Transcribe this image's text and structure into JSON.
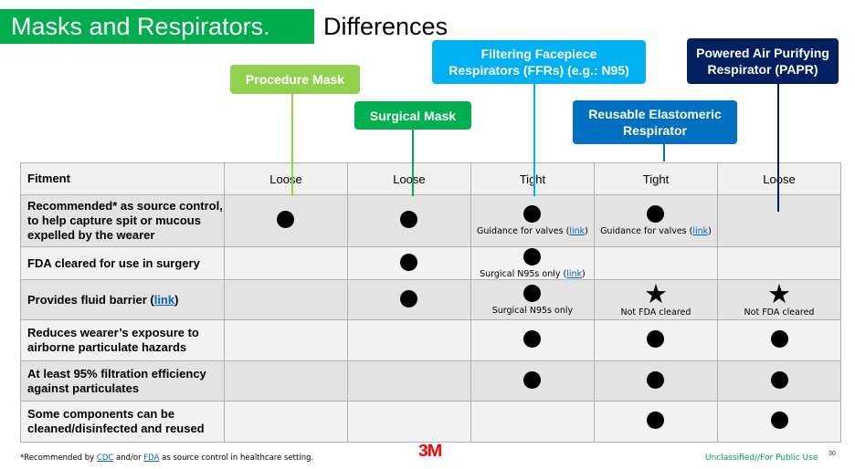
{
  "header": {
    "title": "Masks and Respirators.",
    "subtitle": "Differences"
  },
  "colors": {
    "title_green": "#00ac4b",
    "procedure": "#92d050",
    "surgical": "#00b050",
    "ffr": "#00b0f0",
    "reusable": "#0070c0",
    "papr": "#002060",
    "link": "#0563c1",
    "classification": "#00a050",
    "logo": "#ff0000"
  },
  "callouts": {
    "procedure": "Procedure Mask",
    "surgical": "Surgical Mask",
    "ffr": "Filtering Facepiece Respirators (FFRs) (e.g.: N95)",
    "reusable": "Reusable Elastomeric Respirator",
    "papr": "Powered Air Purifying Respirator (PAPR)"
  },
  "table": {
    "header": {
      "label": "Fitment",
      "values": [
        "Loose",
        "Loose",
        "Tight",
        "Tight",
        "Loose"
      ]
    },
    "rows": [
      {
        "label": "Recommended* as source control, to help capture spit or mucous expelled by the wearer",
        "cells": [
          {
            "mark": "dot"
          },
          {
            "mark": "dot"
          },
          {
            "mark": "dot",
            "note": "Guidance for valves (",
            "link": "link",
            "note_end": ")"
          },
          {
            "mark": "dot",
            "note": "Guidance for valves (",
            "link": "link",
            "note_end": ")"
          },
          {
            "mark": ""
          }
        ]
      },
      {
        "label": "FDA cleared for use in surgery",
        "cells": [
          {
            "mark": ""
          },
          {
            "mark": "dot"
          },
          {
            "mark": "dot",
            "note": "Surgical N95s only (",
            "link": "link",
            "note_end": ")"
          },
          {
            "mark": ""
          },
          {
            "mark": ""
          }
        ]
      },
      {
        "label": "Provides fluid barrier (",
        "label_link": "link",
        "label_end": ")",
        "cells": [
          {
            "mark": ""
          },
          {
            "mark": "dot"
          },
          {
            "mark": "dot",
            "note": "Surgical N95s only"
          },
          {
            "mark": "star",
            "note": "Not FDA cleared"
          },
          {
            "mark": "star",
            "note": "Not FDA cleared"
          }
        ]
      },
      {
        "label": "Reduces wearer’s exposure to airborne particulate hazards",
        "cells": [
          {
            "mark": ""
          },
          {
            "mark": ""
          },
          {
            "mark": "dot"
          },
          {
            "mark": "dot"
          },
          {
            "mark": "dot"
          }
        ]
      },
      {
        "label": "At least 95% filtration efficiency against particulates",
        "cells": [
          {
            "mark": ""
          },
          {
            "mark": ""
          },
          {
            "mark": "dot"
          },
          {
            "mark": "dot"
          },
          {
            "mark": "dot"
          }
        ]
      },
      {
        "label": "Some components can be cleaned/disinfected and reused",
        "cells": [
          {
            "mark": ""
          },
          {
            "mark": ""
          },
          {
            "mark": ""
          },
          {
            "mark": "dot"
          },
          {
            "mark": "dot"
          }
        ]
      }
    ]
  },
  "footer": {
    "note_start": "*Recommended by ",
    "cdc": "CDC",
    "and_or": " and/or ",
    "fda": "FDA",
    "note_end": " as source control in healthcare setting.",
    "logo": "3M",
    "classification": "Unclassified//For Public Use",
    "page": "30"
  }
}
